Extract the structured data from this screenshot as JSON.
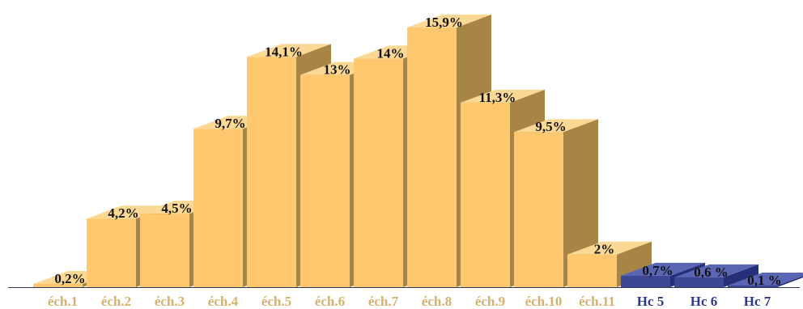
{
  "chart_data": {
    "type": "bar",
    "title": "",
    "xlabel": "",
    "ylabel": "",
    "ylim": [
      0,
      16
    ],
    "grid": false,
    "legend": "none",
    "categories": [
      "éch.1",
      "éch.2",
      "éch.3",
      "éch.4",
      "éch.5",
      "éch.6",
      "éch.7",
      "éch.8",
      "éch.9",
      "éch.10",
      "éch.11",
      "Hc 5",
      "Hc 6",
      "Hc 7"
    ],
    "values": [
      0.2,
      4.2,
      4.5,
      9.7,
      14.1,
      13,
      14,
      15.9,
      11.3,
      9.5,
      2,
      0.7,
      0.6,
      0.1
    ],
    "value_labels": [
      "0,2%",
      "4,2%",
      "4,5%",
      "9,7%",
      "14,1%",
      "13%",
      "14%",
      "15,9%",
      "11,3%",
      "9,5%",
      "2%",
      "0,7%",
      "0,6 %",
      "0,1 %"
    ],
    "group": [
      "ech",
      "ech",
      "ech",
      "ech",
      "ech",
      "ech",
      "ech",
      "ech",
      "ech",
      "ech",
      "ech",
      "hc",
      "hc",
      "hc"
    ],
    "colors": {
      "ech_front": "#FFC86E",
      "ech_top": "#FBD894",
      "ech_side": "#A68545",
      "ech_label": "#D7B26E",
      "hc_front": "#3C4796",
      "hc_top": "#5A66B4",
      "hc_side": "#263079",
      "hc_label": "#2E3A8C",
      "axis": "#333355"
    }
  }
}
